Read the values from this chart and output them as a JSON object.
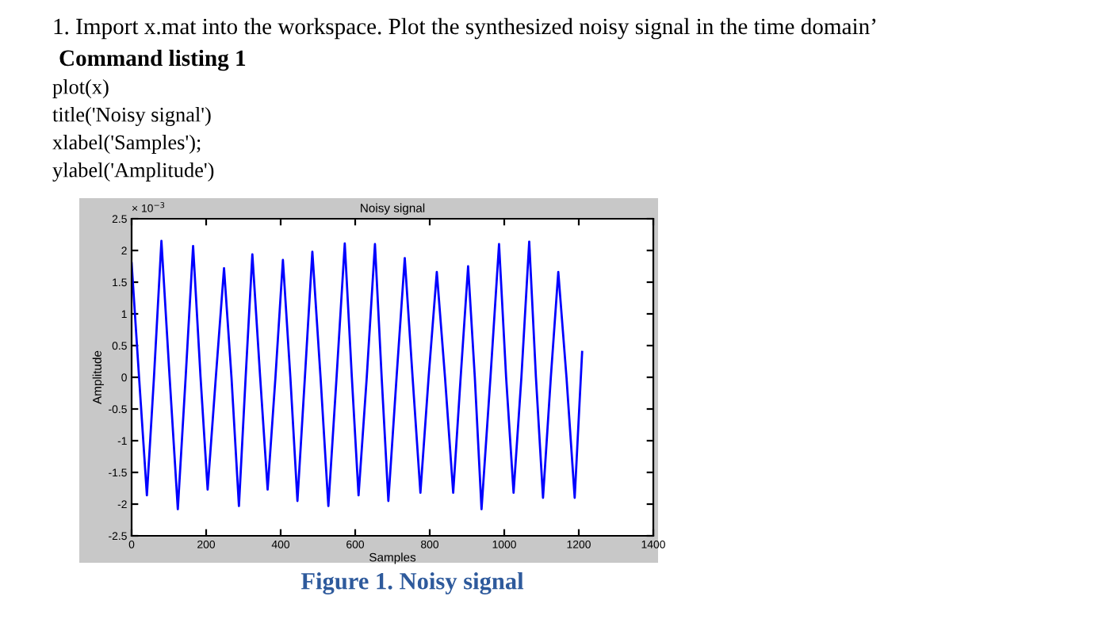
{
  "chart_data": {
    "type": "line",
    "title": "Noisy signal",
    "xlabel": "Samples",
    "ylabel": "Amplitude",
    "x": [
      0,
      20,
      41,
      60,
      80,
      102,
      124,
      145,
      165,
      185,
      204,
      226,
      248,
      268,
      288,
      306,
      324,
      345,
      365,
      386,
      406,
      426,
      445,
      465,
      485,
      507,
      528,
      550,
      572,
      591,
      609,
      631,
      653,
      671,
      689,
      711,
      733,
      754,
      775,
      797,
      819,
      841,
      863,
      883,
      903,
      921,
      939,
      963,
      986,
      1005,
      1025,
      1046,
      1067,
      1085,
      1104,
      1125,
      1145,
      1167,
      1189,
      1209
    ],
    "series": [
      {
        "color": "#0000ff",
        "values": [
          1.8,
          0,
          -1.86,
          0,
          2.15,
          0,
          -2.08,
          0,
          2.07,
          0,
          -1.77,
          0,
          1.72,
          0,
          -2.03,
          0,
          1.94,
          0,
          -1.77,
          0,
          1.85,
          0,
          -1.95,
          0,
          1.98,
          0,
          -2.03,
          0,
          2.11,
          0,
          -1.86,
          0,
          2.1,
          0,
          -1.95,
          0,
          1.88,
          0,
          -1.82,
          0,
          1.66,
          0,
          -1.82,
          0,
          1.75,
          0,
          -2.08,
          0,
          2.1,
          0,
          -1.82,
          0,
          2.14,
          0,
          -1.9,
          0,
          1.66,
          0,
          -1.9,
          0.4
        ]
      }
    ],
    "xlim": [
      0,
      1400
    ],
    "xticks": [
      0,
      200,
      400,
      600,
      800,
      1000,
      1200,
      1400
    ],
    "ylim": [
      -2.5,
      2.5
    ],
    "yticks": [
      -2.5,
      -2,
      -1.5,
      -1,
      -0.5,
      0,
      0.5,
      1,
      1.5,
      2,
      2.5
    ],
    "grid": false,
    "legend": false,
    "marker": "none",
    "line_style": "solid",
    "annotations": [
      "1. Import x.mat into the workspace. Plot the synthesized noisy signal in the time domain’",
      "Command listing 1",
      "plot(x)",
      "title('Noisy signal')",
      "xlabel('Samples');",
      "ylabel('Amplitude')",
      "× 10$^{−3}$",
      "Figure 1. Noisy signal"
    ]
  }
}
